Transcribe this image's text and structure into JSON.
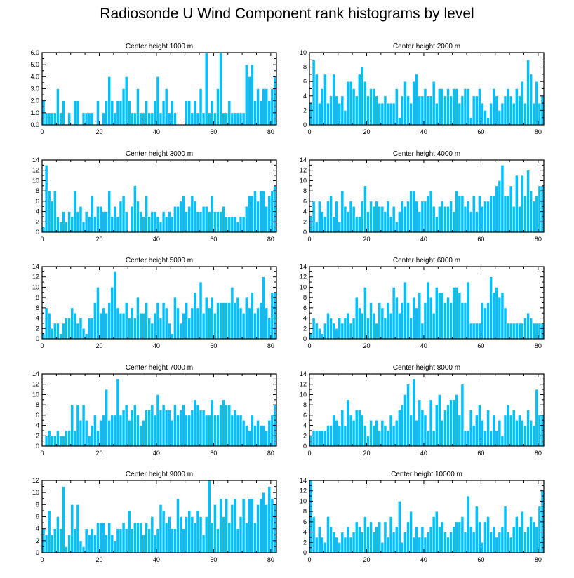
{
  "title": "Radiosonde U Wind Component rank histograms by level",
  "colors": {
    "bar": "#00c0ff",
    "bar_edge": "#ffffff",
    "axis": "#000000"
  },
  "chart_data": [
    {
      "type": "bar",
      "title": "Center height 1000 m",
      "xlim": [
        0,
        82
      ],
      "ylim": [
        0,
        6
      ],
      "xticks": [
        0,
        20,
        40,
        60,
        80
      ],
      "yticks": [
        0,
        1,
        2,
        3,
        4,
        5,
        6
      ],
      "ytick_labels": [
        "0.0",
        "1.0",
        "2.0",
        "3.0",
        "4.0",
        "5.0",
        "6.0"
      ],
      "values": [
        2,
        1,
        1,
        1,
        1,
        3,
        1,
        2,
        0,
        1,
        0,
        2,
        2,
        0,
        1,
        1,
        1,
        1,
        0,
        2,
        0,
        1,
        2,
        4,
        2,
        1,
        2,
        2,
        3,
        4,
        2,
        1,
        1,
        3,
        1,
        1,
        2,
        1,
        1,
        2,
        4,
        1,
        2,
        3,
        1,
        2,
        1,
        0,
        0,
        0,
        2,
        2,
        1,
        2,
        1,
        3,
        1,
        6,
        1,
        2,
        1,
        3,
        6,
        1,
        1,
        2,
        1,
        1,
        1,
        1,
        1,
        5,
        4,
        5,
        2,
        3,
        2,
        3,
        3,
        2,
        3,
        4
      ]
    },
    {
      "type": "bar",
      "title": "Center height 2000 m",
      "xlim": [
        0,
        82
      ],
      "ylim": [
        0,
        10
      ],
      "xticks": [
        0,
        20,
        40,
        60,
        80
      ],
      "yticks": [
        0,
        2,
        4,
        6,
        8,
        10
      ],
      "ytick_labels": [
        "0",
        "2",
        "4",
        "6",
        "8",
        "10"
      ],
      "values": [
        3,
        9,
        7,
        3,
        5,
        7,
        3,
        4,
        7,
        4,
        3,
        4,
        2,
        6,
        6,
        5,
        4,
        7,
        8,
        6,
        4,
        5,
        5,
        4,
        3,
        3,
        4,
        3,
        3,
        3,
        5,
        1,
        4,
        6,
        4,
        3,
        6,
        7,
        4,
        4,
        5,
        4,
        4,
        6,
        3,
        5,
        5,
        4,
        5,
        4,
        5,
        5,
        3,
        4,
        5,
        5,
        1,
        4,
        4,
        5,
        3,
        2,
        1,
        3,
        5,
        4,
        2,
        3,
        4,
        5,
        4,
        3,
        5,
        4,
        6,
        3,
        9,
        7,
        3,
        6,
        3,
        4
      ]
    },
    {
      "type": "bar",
      "title": "Center height 3000 m",
      "xlim": [
        0,
        82
      ],
      "ylim": [
        0,
        14
      ],
      "xticks": [
        0,
        20,
        40,
        60,
        80
      ],
      "yticks": [
        0,
        2,
        4,
        6,
        8,
        10,
        12,
        14
      ],
      "ytick_labels": [
        "0",
        "2",
        "4",
        "6",
        "8",
        "10",
        "12",
        "14"
      ],
      "values": [
        1,
        13,
        8,
        6,
        8,
        3,
        2,
        4,
        2,
        4,
        3,
        8,
        4,
        5,
        2,
        4,
        3,
        7,
        3,
        5,
        5,
        4,
        4,
        8,
        3,
        5,
        3,
        6,
        7,
        4,
        0,
        5,
        9,
        6,
        4,
        3,
        7,
        3,
        4,
        4,
        3,
        2,
        4,
        3,
        4,
        3,
        5,
        5,
        6,
        7,
        4,
        5,
        7,
        6,
        4,
        4,
        5,
        5,
        4,
        7,
        4,
        4,
        4,
        5,
        3,
        3,
        3,
        3,
        2,
        3,
        3,
        5,
        7,
        7,
        8,
        6,
        8,
        8,
        5,
        7,
        8,
        9
      ]
    },
    {
      "type": "bar",
      "title": "Center height 4000 m",
      "xlim": [
        0,
        82
      ],
      "ylim": [
        0,
        14
      ],
      "xticks": [
        0,
        20,
        40,
        60,
        80
      ],
      "yticks": [
        0,
        2,
        4,
        6,
        8,
        10,
        12,
        14
      ],
      "ytick_labels": [
        "0",
        "2",
        "4",
        "6",
        "8",
        "10",
        "12",
        "14"
      ],
      "values": [
        3,
        6,
        2,
        6,
        4,
        3,
        6,
        7,
        3,
        6,
        2,
        8,
        5,
        4,
        6,
        5,
        3,
        3,
        6,
        9,
        4,
        6,
        5,
        6,
        5,
        5,
        4,
        6,
        3,
        5,
        2,
        4,
        6,
        5,
        6,
        8,
        8,
        6,
        4,
        6,
        6,
        7,
        8,
        5,
        3,
        5,
        6,
        5,
        5,
        6,
        4,
        8,
        7,
        7,
        5,
        6,
        4,
        7,
        4,
        7,
        5,
        6,
        6,
        7,
        7,
        9,
        10,
        13,
        7,
        7,
        9,
        5,
        11,
        5,
        11,
        7,
        12,
        8,
        6,
        7,
        9,
        9
      ]
    },
    {
      "type": "bar",
      "title": "Center height 5000 m",
      "xlim": [
        0,
        82
      ],
      "ylim": [
        0,
        14
      ],
      "xticks": [
        0,
        20,
        40,
        60,
        80
      ],
      "yticks": [
        0,
        2,
        4,
        6,
        8,
        10,
        12,
        14
      ],
      "ytick_labels": [
        "0",
        "2",
        "4",
        "6",
        "8",
        "10",
        "12",
        "14"
      ],
      "values": [
        1,
        6,
        5,
        2,
        3,
        3,
        1,
        3,
        4,
        4,
        6,
        5,
        3,
        4,
        2,
        1,
        4,
        4,
        7,
        10,
        5,
        6,
        5,
        7,
        10,
        13,
        6,
        5,
        5,
        7,
        4,
        6,
        4,
        8,
        5,
        5,
        7,
        4,
        3,
        5,
        7,
        4,
        7,
        6,
        3,
        1,
        8,
        6,
        3,
        5,
        7,
        4,
        6,
        9,
        6,
        11,
        5,
        8,
        6,
        8,
        5,
        7,
        7,
        7,
        7,
        7,
        10,
        7,
        8,
        6,
        5,
        8,
        6,
        9,
        5,
        6,
        7,
        12,
        6,
        4,
        9,
        9
      ]
    },
    {
      "type": "bar",
      "title": "Center height 6000 m",
      "xlim": [
        0,
        82
      ],
      "ylim": [
        0,
        14
      ],
      "xticks": [
        0,
        20,
        40,
        60,
        80
      ],
      "yticks": [
        0,
        2,
        4,
        6,
        8,
        10,
        12,
        14
      ],
      "ytick_labels": [
        "0",
        "2",
        "4",
        "6",
        "8",
        "10",
        "12",
        "14"
      ],
      "values": [
        1,
        4,
        3,
        2,
        1,
        3,
        5,
        4,
        3,
        2,
        4,
        3,
        4,
        5,
        3,
        4,
        8,
        6,
        5,
        10,
        4,
        7,
        5,
        3,
        7,
        6,
        4,
        7,
        5,
        10,
        8,
        5,
        7,
        11,
        7,
        4,
        8,
        6,
        9,
        3,
        7,
        11,
        8,
        5,
        10,
        9,
        9,
        7,
        8,
        7,
        10,
        10,
        9,
        7,
        7,
        11,
        3,
        3,
        3,
        3,
        7,
        6,
        7,
        12,
        9,
        10,
        8,
        9,
        6,
        3,
        3,
        3,
        3,
        3,
        3,
        4,
        5,
        4,
        3,
        3,
        3,
        3
      ]
    },
    {
      "type": "bar",
      "title": "Center height 7000 m",
      "xlim": [
        0,
        82
      ],
      "ylim": [
        0,
        14
      ],
      "xticks": [
        0,
        20,
        40,
        60,
        80
      ],
      "yticks": [
        0,
        2,
        4,
        6,
        8,
        10,
        12,
        14
      ],
      "ytick_labels": [
        "0",
        "2",
        "4",
        "6",
        "8",
        "10",
        "12",
        "14"
      ],
      "values": [
        0,
        2,
        3,
        2,
        2,
        3,
        2,
        2,
        3,
        3,
        8,
        3,
        8,
        5,
        8,
        5,
        2,
        4,
        6,
        3,
        5,
        6,
        11,
        5,
        6,
        6,
        13,
        6,
        7,
        8,
        5,
        7,
        8,
        6,
        4,
        5,
        7,
        7,
        8,
        6,
        10,
        7,
        8,
        7,
        7,
        5,
        8,
        6,
        7,
        8,
        6,
        6,
        7,
        9,
        8,
        7,
        7,
        6,
        6,
        9,
        6,
        6,
        8,
        9,
        8,
        8,
        6,
        7,
        6,
        6,
        5,
        4,
        3,
        6,
        4,
        5,
        4,
        4,
        3,
        5,
        6,
        8
      ]
    },
    {
      "type": "bar",
      "title": "Center height 8000 m",
      "xlim": [
        0,
        82
      ],
      "ylim": [
        0,
        14
      ],
      "xticks": [
        0,
        20,
        40,
        60,
        80
      ],
      "yticks": [
        0,
        2,
        4,
        6,
        8,
        10,
        12,
        14
      ],
      "ytick_labels": [
        "0",
        "2",
        "4",
        "6",
        "8",
        "10",
        "12",
        "14"
      ],
      "values": [
        2,
        3,
        3,
        3,
        3,
        3,
        4,
        4,
        6,
        5,
        4,
        7,
        4,
        9,
        6,
        5,
        7,
        7,
        6,
        4,
        2,
        5,
        4,
        5,
        3,
        5,
        4,
        3,
        6,
        4,
        5,
        7,
        8,
        10,
        12,
        6,
        13,
        5,
        9,
        7,
        6,
        3,
        9,
        3,
        8,
        10,
        5,
        7,
        8,
        9,
        9,
        10,
        6,
        12,
        3,
        3,
        7,
        4,
        6,
        8,
        5,
        3,
        7,
        3,
        6,
        3,
        5,
        2,
        6,
        8,
        6,
        7,
        5,
        6,
        5,
        4,
        7,
        5,
        4,
        11,
        6,
        6
      ]
    },
    {
      "type": "bar",
      "title": "Center height 9000 m",
      "xlim": [
        0,
        82
      ],
      "ylim": [
        0,
        12
      ],
      "xticks": [
        0,
        20,
        40,
        60,
        80
      ],
      "yticks": [
        0,
        2,
        4,
        6,
        8,
        10,
        12
      ],
      "ytick_labels": [
        "0",
        "2",
        "4",
        "6",
        "8",
        "10",
        "12"
      ],
      "values": [
        4,
        3,
        7,
        3,
        4,
        6,
        4,
        11,
        1,
        3,
        8,
        4,
        8,
        2,
        1,
        4,
        3,
        4,
        3,
        5,
        5,
        5,
        3,
        5,
        3,
        2,
        4,
        4,
        5,
        4,
        7,
        4,
        5,
        5,
        5,
        3,
        5,
        4,
        6,
        3,
        4,
        8,
        7,
        5,
        6,
        4,
        4,
        9,
        6,
        4,
        6,
        7,
        6,
        5,
        7,
        6,
        3,
        6,
        12,
        5,
        8,
        4,
        9,
        6,
        9,
        5,
        8,
        9,
        4,
        6,
        9,
        5,
        9,
        9,
        5,
        8,
        9,
        10,
        8,
        11,
        9,
        8
      ]
    },
    {
      "type": "bar",
      "title": "Center height 10000 m",
      "xlim": [
        0,
        82
      ],
      "ylim": [
        0,
        14
      ],
      "xticks": [
        0,
        20,
        40,
        60,
        80
      ],
      "yticks": [
        0,
        2,
        4,
        6,
        8,
        10,
        12,
        14
      ],
      "ytick_labels": [
        "0",
        "2",
        "4",
        "6",
        "8",
        "10",
        "12",
        "14"
      ],
      "values": [
        14,
        7,
        3,
        5,
        3,
        2,
        7,
        5,
        4,
        3,
        2,
        4,
        3,
        5,
        3,
        4,
        6,
        5,
        4,
        7,
        5,
        6,
        4,
        5,
        6,
        2,
        6,
        3,
        7,
        4,
        5,
        10,
        2,
        4,
        6,
        8,
        3,
        5,
        3,
        5,
        3,
        4,
        5,
        7,
        8,
        5,
        6,
        4,
        3,
        4,
        5,
        6,
        6,
        7,
        4,
        11,
        5,
        4,
        9,
        6,
        2,
        6,
        7,
        4,
        5,
        3,
        4,
        5,
        9,
        4,
        3,
        5,
        7,
        5,
        8,
        4,
        5,
        7,
        6,
        5,
        9,
        12
      ]
    }
  ]
}
